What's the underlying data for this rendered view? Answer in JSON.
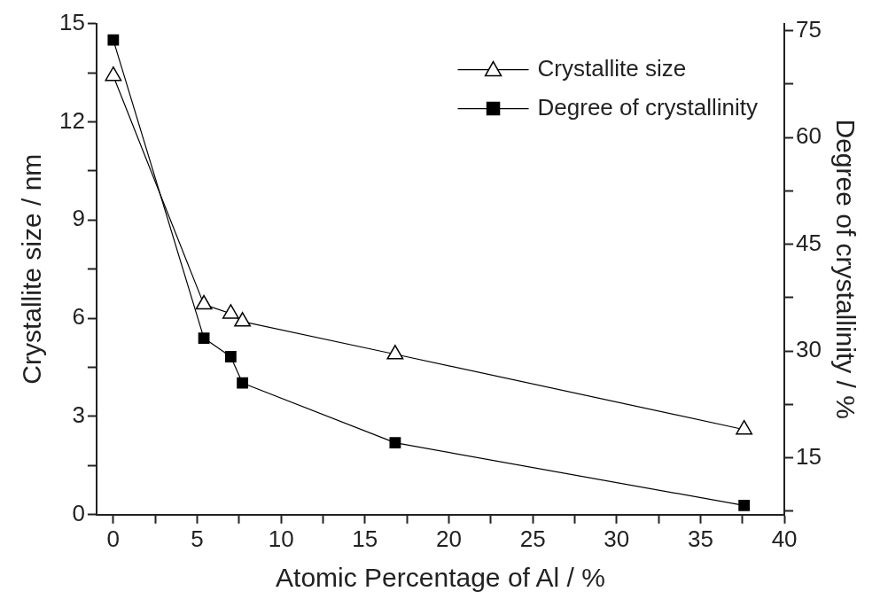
{
  "chart_data": {
    "type": "line",
    "xlabel": "Atomic Percentage of Al / %",
    "ylabel": "Crystallite size / nm",
    "y2label": "Degree of crystallinity / %",
    "xlim": [
      -1,
      40
    ],
    "xticks": [
      0,
      {
        "value": 2.5,
        "label": null
      },
      5,
      {
        "value": 7.5,
        "label": null
      },
      10,
      {
        "value": 12.5,
        "label": null
      },
      15,
      {
        "value": 17.5,
        "label": null
      },
      20,
      {
        "value": 22.5,
        "label": null
      },
      25,
      {
        "value": 27.5,
        "label": null
      },
      30,
      {
        "value": 32.5,
        "label": null
      },
      35,
      {
        "value": 37.5,
        "label": null
      },
      40
    ],
    "ylim": [
      0,
      15
    ],
    "yticks": [
      0,
      {
        "value": 1.5,
        "label": null
      },
      3,
      {
        "value": 4.5,
        "label": null
      },
      6,
      {
        "value": 7.5,
        "label": null
      },
      9,
      {
        "value": 10.5,
        "label": null
      },
      12,
      {
        "value": 13.5,
        "label": null
      },
      15
    ],
    "y2lim": [
      7,
      76
    ],
    "y2ticks": [
      {
        "value": 7.5,
        "label": null
      },
      15,
      {
        "value": 22.5,
        "label": null
      },
      30,
      {
        "value": 37.5,
        "label": null
      },
      45,
      {
        "value": 52.5,
        "label": null
      },
      60,
      {
        "value": 67.5,
        "label": null
      },
      75
    ],
    "x": [
      0,
      5.4,
      7.0,
      7.7,
      16.8,
      37.6
    ],
    "series": [
      {
        "name": "Crystallite size",
        "color": "#000000",
        "marker": "triangle",
        "values": [
          13.4,
          6.42,
          6.14,
          5.9,
          4.9,
          2.6
        ]
      },
      {
        "name": "Degree of crystallinity",
        "color": "#000000",
        "marker": "square",
        "axis": "y2",
        "values": [
          73.7,
          31.8,
          29.2,
          25.5,
          17.1,
          8.3
        ]
      }
    ],
    "legend": "top right",
    "grid": false,
    "line_style": "solid"
  }
}
